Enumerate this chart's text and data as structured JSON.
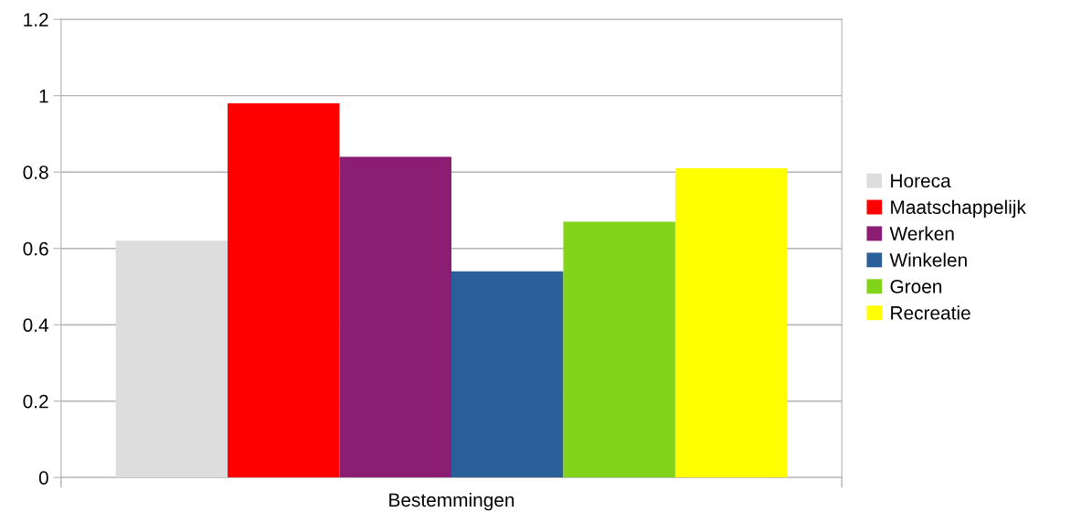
{
  "chart_data": {
    "type": "bar",
    "categories": [
      "Bestemmingen"
    ],
    "series": [
      {
        "name": "Horeca",
        "color": "#dddddd",
        "values": [
          0.62
        ]
      },
      {
        "name": "Maatschappelijk",
        "color": "#ff0000",
        "values": [
          0.98
        ]
      },
      {
        "name": "Werken",
        "color": "#8b1e72",
        "values": [
          0.84
        ]
      },
      {
        "name": "Winkelen",
        "color": "#2a6099",
        "values": [
          0.54
        ]
      },
      {
        "name": "Groen",
        "color": "#81d41a",
        "values": [
          0.67
        ]
      },
      {
        "name": "Recreatie",
        "color": "#ffff00",
        "values": [
          0.81
        ]
      }
    ],
    "ylim": [
      0,
      1.2
    ],
    "yticks": [
      0,
      0.2,
      0.4,
      0.6,
      0.8,
      1,
      1.2
    ],
    "grid": "y",
    "legend": "right"
  }
}
